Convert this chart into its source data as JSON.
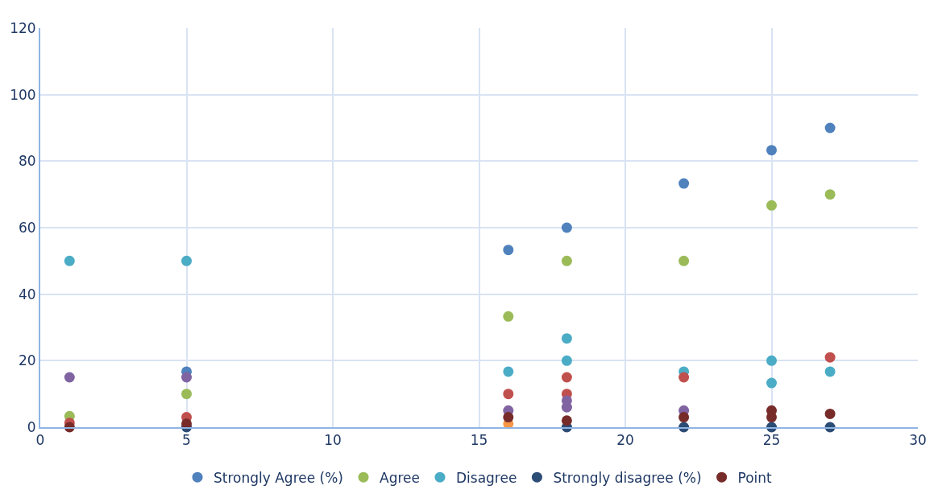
{
  "chart_data": {
    "type": "scatter",
    "xlim": [
      0,
      30
    ],
    "xticks": [
      0,
      5,
      10,
      15,
      20,
      25,
      30
    ],
    "ylim": [
      0,
      120
    ],
    "yticks": [
      0,
      20,
      40,
      60,
      80,
      100,
      120
    ],
    "grid": true,
    "legend": "bottom",
    "marker": "circle",
    "series": [
      {
        "name": "Strongly Agree (%)",
        "color": "#4f81bd",
        "x": [
          5,
          16,
          18,
          22,
          25,
          27
        ],
        "values": [
          16.7,
          53.3,
          60,
          73.3,
          83.3,
          90
        ]
      },
      {
        "name": "Agree",
        "color": "#9bbb59",
        "x": [
          1,
          5,
          16,
          18,
          22,
          25,
          27
        ],
        "values": [
          3.3,
          10,
          33.3,
          50,
          50,
          66.7,
          70
        ]
      },
      {
        "name": "Disagree",
        "color": "#4bacc6",
        "x": [
          1,
          5,
          16,
          18,
          18,
          22,
          25,
          25,
          27
        ],
        "values": [
          50,
          50,
          16.7,
          26.7,
          20,
          16.7,
          20,
          13.3,
          16.7
        ]
      },
      {
        "color": "#c0504d",
        "x": [
          1,
          5,
          16,
          18,
          18,
          22,
          27
        ],
        "values": [
          1.3,
          3,
          10,
          15,
          10,
          15,
          21
        ]
      },
      {
        "color": "#8064a2",
        "x": [
          1,
          5,
          16,
          18,
          18,
          22
        ],
        "values": [
          15,
          15,
          5,
          8,
          6,
          5
        ]
      },
      {
        "color": "#f79646",
        "x": [
          16
        ],
        "values": [
          1
        ]
      },
      {
        "name": "Strongly disagree (%)",
        "color": "#2c4d75",
        "x": [
          5,
          18,
          22,
          25,
          27
        ],
        "values": [
          0,
          0,
          0,
          0,
          0
        ]
      },
      {
        "name": "Point",
        "color": "#772c2a",
        "x": [
          1,
          5,
          16,
          18,
          22,
          25,
          25,
          27
        ],
        "values": [
          0,
          1,
          3,
          2,
          3,
          5,
          3,
          4
        ]
      }
    ]
  }
}
